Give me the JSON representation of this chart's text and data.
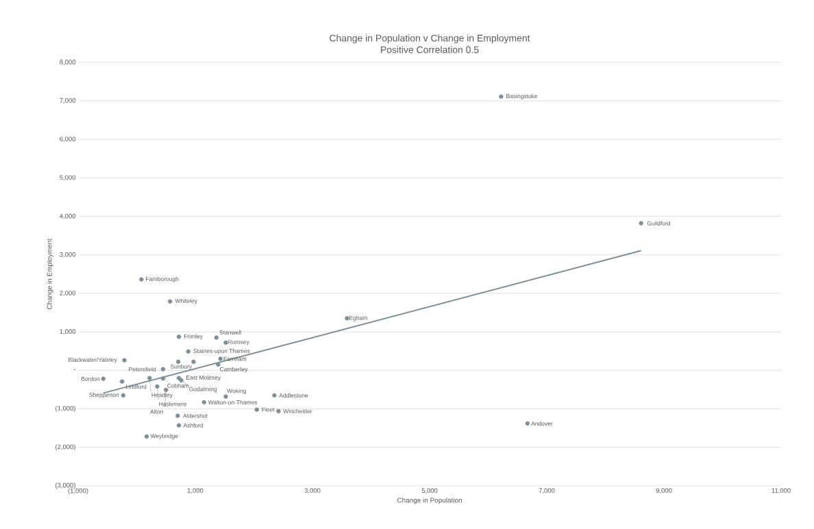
{
  "chart_data": {
    "type": "scatter",
    "title": "Change in Population v Change in Employment",
    "subtitle": "Positive Correlation 0.5",
    "xlabel": "Change in Population",
    "ylabel": "Change in Employment",
    "series": [
      {
        "color": "#7a8f99",
        "marker": "circle",
        "x": [
          6220,
          8610,
          6670,
          3590,
          80,
          570,
          720,
          1360,
          1520,
          880,
          -210,
          1430,
          970,
          1390,
          450,
          -570,
          -250,
          220,
          450,
          720,
          760,
          350,
          500,
          -230,
          1150,
          1520,
          2350,
          2050,
          2420,
          700,
          720,
          170,
          710
        ],
        "values": [
          7110,
          3820,
          -1380,
          1350,
          2360,
          1790,
          870,
          850,
          720,
          490,
          260,
          300,
          220,
          150,
          30,
          -220,
          -290,
          -200,
          -210,
          -200,
          -260,
          -420,
          -510,
          -650,
          -830,
          -680,
          -650,
          -1020,
          -1060,
          -1180,
          -1430,
          -1720,
          220
        ]
      },
      {
        "type": "line",
        "color": "#7a8f99",
        "marker": "none",
        "x": [
          -570,
          8610
        ],
        "values": [
          -590,
          3110
        ]
      }
    ],
    "annotations": [
      {
        "text": "Basingstoke",
        "x": 6220,
        "y": 7110
      },
      {
        "text": "Guildford",
        "x": 8610,
        "y": 3820
      },
      {
        "text": "Andover",
        "x": 6670,
        "y": -1380
      },
      {
        "text": "Egham",
        "x": 3590,
        "y": 1350
      },
      {
        "text": "Farnborough",
        "x": 80,
        "y": 2360
      },
      {
        "text": "Whiteley",
        "x": 570,
        "y": 1790
      },
      {
        "text": "Frimley",
        "x": 720,
        "y": 870
      },
      {
        "text": "Stanwell",
        "x": 1360,
        "y": 850
      },
      {
        "text": "Romsey",
        "x": 1520,
        "y": 720
      },
      {
        "text": "Staines-upon Thames",
        "x": 880,
        "y": 490
      },
      {
        "text": "Blackwater/Yateley",
        "x": -210,
        "y": 260
      },
      {
        "text": "Farnham",
        "x": 1430,
        "y": 300
      },
      {
        "text": "Sunbury",
        "x": 970,
        "y": 220
      },
      {
        "text": "Camberley",
        "x": 1390,
        "y": 150
      },
      {
        "text": "Petersfield",
        "x": 450,
        "y": 30
      },
      {
        "text": "Bordon",
        "x": -570,
        "y": -220
      },
      {
        "text": "Lindford",
        "x": -250,
        "y": -290
      },
      {
        "text": "Headley",
        "x": 220,
        "y": -200
      },
      {
        "text": "Cobham",
        "x": 450,
        "y": -210
      },
      {
        "text": "East Molesey",
        "x": 720,
        "y": -200
      },
      {
        "text": "Godalming",
        "x": 760,
        "y": -260
      },
      {
        "text": "Haslemere",
        "x": 350,
        "y": -420
      },
      {
        "text": "Alton",
        "x": 500,
        "y": -510
      },
      {
        "text": "Shepperton",
        "x": -230,
        "y": -650
      },
      {
        "text": "Walton-on-Thames",
        "x": 1150,
        "y": -830
      },
      {
        "text": "Woking",
        "x": 1520,
        "y": -680
      },
      {
        "text": "Addlestone",
        "x": 2350,
        "y": -650
      },
      {
        "text": "Fleet",
        "x": 2050,
        "y": -1020
      },
      {
        "text": "Winchester",
        "x": 2420,
        "y": -1060
      },
      {
        "text": "Aldershot",
        "x": 700,
        "y": -1180
      },
      {
        "text": "Ashford",
        "x": 720,
        "y": -1430
      },
      {
        "text": "Weybridge",
        "x": 170,
        "y": -1720
      }
    ],
    "xlim": [
      -1000,
      11000
    ],
    "xticks": [
      {
        "value": -1000,
        "label": "(1,000)"
      },
      {
        "value": 1000,
        "label": "1,000"
      },
      {
        "value": 3000,
        "label": "3,000"
      },
      {
        "value": 5000,
        "label": "5,000"
      },
      {
        "value": 7000,
        "label": "7,000"
      },
      {
        "value": 9000,
        "label": "9,000"
      },
      {
        "value": 11000,
        "label": "11,000"
      }
    ],
    "ylim": [
      -3000,
      8000
    ],
    "yticks": [
      {
        "value": -3000,
        "label": "(3,000)"
      },
      {
        "value": -2000,
        "label": "(2,000)"
      },
      {
        "value": -1000,
        "label": "(1,000)"
      },
      {
        "value": 0,
        "label": "-"
      },
      {
        "value": 1000,
        "label": "1,000"
      },
      {
        "value": 2000,
        "label": "2,000"
      },
      {
        "value": 3000,
        "label": "3,000"
      },
      {
        "value": 4000,
        "label": "4,000"
      },
      {
        "value": 5000,
        "label": "5,000"
      },
      {
        "value": 6000,
        "label": "6,000"
      },
      {
        "value": 7000,
        "label": "7,000"
      },
      {
        "value": 8000,
        "label": "8,000"
      }
    ],
    "grid": "y"
  }
}
